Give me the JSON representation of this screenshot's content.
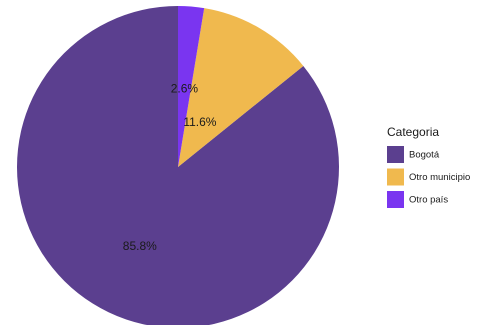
{
  "chart_data": {
    "type": "pie",
    "title": "",
    "legend": {
      "title": "Categoria",
      "placement": "right"
    },
    "slices": [
      {
        "label": "Bogotá",
        "value": 85.8,
        "display": "85.8%",
        "color": "#5b3f8f"
      },
      {
        "label": "Otro municipio",
        "value": 11.6,
        "display": "11.6%",
        "color": "#f0b94e"
      },
      {
        "label": "Otro país",
        "value": 2.6,
        "display": "2.6%",
        "color": "#7a35f0"
      }
    ],
    "start": "top",
    "direction": "counterclockwise"
  }
}
